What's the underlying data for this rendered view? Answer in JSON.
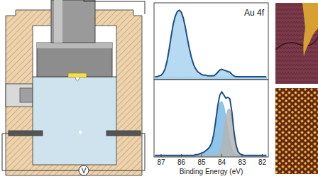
{
  "chart_data": [
    {
      "type": "line",
      "annotation": "Au 4f",
      "xlim": [
        87.35,
        81.7
      ],
      "ylim": [
        0,
        1.05
      ],
      "tick_labels": false,
      "x": [
        87.3,
        87.2,
        87.1,
        87.0,
        86.9,
        86.8,
        86.7,
        86.6,
        86.5,
        86.4,
        86.3,
        86.2,
        86.1,
        86.0,
        85.9,
        85.8,
        85.7,
        85.6,
        85.5,
        85.4,
        85.3,
        85.2,
        85.1,
        85.0,
        84.9,
        84.8,
        84.7,
        84.6,
        84.5,
        84.4,
        84.3,
        84.2,
        84.1,
        84.0,
        83.9,
        83.8,
        83.7,
        83.6,
        83.5,
        83.4,
        83.3,
        83.2,
        83.1,
        83.0,
        82.9,
        82.8,
        82.7,
        82.6,
        82.5,
        82.4,
        82.3,
        82.2,
        82.1,
        82.0,
        81.9,
        81.8
      ],
      "series": [
        {
          "type": "area",
          "color": "#a8d3ef",
          "values": [
            0.04,
            0.04,
            0.05,
            0.06,
            0.09,
            0.15,
            0.26,
            0.42,
            0.6,
            0.76,
            0.87,
            0.93,
            0.95,
            0.92,
            0.84,
            0.71,
            0.56,
            0.42,
            0.3,
            0.21,
            0.15,
            0.11,
            0.09,
            0.07,
            0.06,
            0.06,
            0.05,
            0.05,
            0.05,
            0.04,
            0.04,
            0.04,
            0.04,
            0.04,
            0.04,
            0.04,
            0.04,
            0.04,
            0.04,
            0.04,
            0.04,
            0.04,
            0.04,
            0.04,
            0.04,
            0.04,
            0.04,
            0.04,
            0.04,
            0.04,
            0.04,
            0.04,
            0.04,
            0.04,
            0.04,
            0.04
          ]
        },
        {
          "type": "area",
          "color": "#a8d3ef",
          "values": [
            0.04,
            0.04,
            0.04,
            0.04,
            0.04,
            0.04,
            0.04,
            0.04,
            0.04,
            0.04,
            0.04,
            0.04,
            0.04,
            0.04,
            0.04,
            0.04,
            0.04,
            0.04,
            0.04,
            0.04,
            0.04,
            0.04,
            0.04,
            0.04,
            0.04,
            0.04,
            0.04,
            0.04,
            0.04,
            0.05,
            0.07,
            0.1,
            0.13,
            0.14,
            0.13,
            0.11,
            0.09,
            0.07,
            0.05,
            0.04,
            0.04,
            0.04,
            0.04,
            0.04,
            0.04,
            0.04,
            0.04,
            0.04,
            0.04,
            0.04,
            0.04,
            0.04,
            0.04,
            0.04,
            0.04,
            0.04
          ]
        },
        {
          "type": "line",
          "color": "#1f4f86",
          "values": [
            0.04,
            0.04,
            0.05,
            0.06,
            0.09,
            0.15,
            0.26,
            0.42,
            0.6,
            0.76,
            0.87,
            0.93,
            0.95,
            0.92,
            0.84,
            0.71,
            0.56,
            0.42,
            0.3,
            0.21,
            0.15,
            0.11,
            0.09,
            0.07,
            0.06,
            0.06,
            0.05,
            0.05,
            0.05,
            0.05,
            0.07,
            0.1,
            0.13,
            0.14,
            0.13,
            0.12,
            0.11,
            0.1,
            0.07,
            0.05,
            0.04,
            0.04,
            0.04,
            0.04,
            0.04,
            0.04,
            0.04,
            0.04,
            0.04,
            0.04,
            0.04,
            0.04,
            0.04,
            0.04,
            0.04,
            0.04
          ]
        }
      ]
    },
    {
      "type": "line",
      "x_label": "Binding Energy (eV)",
      "xlim": [
        87.35,
        81.7
      ],
      "ylim": [
        0,
        1
      ],
      "tick_labels": "x",
      "xticks": [
        87,
        86,
        85,
        84,
        83,
        82
      ],
      "x": [
        87.3,
        87.2,
        87.1,
        87.0,
        86.9,
        86.8,
        86.7,
        86.6,
        86.5,
        86.4,
        86.3,
        86.2,
        86.1,
        86.0,
        85.9,
        85.8,
        85.7,
        85.6,
        85.5,
        85.4,
        85.3,
        85.2,
        85.1,
        85.0,
        84.9,
        84.8,
        84.7,
        84.6,
        84.5,
        84.4,
        84.3,
        84.2,
        84.1,
        84.0,
        83.9,
        83.8,
        83.7,
        83.6,
        83.5,
        83.4,
        83.3,
        83.2,
        83.1,
        83.0,
        82.9,
        82.8,
        82.7,
        82.6,
        82.5,
        82.4,
        82.3,
        82.2,
        82.1,
        82.0,
        81.9,
        81.8
      ],
      "series": [
        {
          "type": "area",
          "color": "#7dbbe6",
          "values": [
            0.02,
            0.02,
            0.02,
            0.02,
            0.02,
            0.02,
            0.02,
            0.02,
            0.02,
            0.02,
            0.02,
            0.02,
            0.02,
            0.02,
            0.02,
            0.02,
            0.02,
            0.02,
            0.02,
            0.02,
            0.03,
            0.03,
            0.04,
            0.05,
            0.06,
            0.08,
            0.1,
            0.13,
            0.18,
            0.28,
            0.44,
            0.6,
            0.7,
            0.72,
            0.66,
            0.52,
            0.35,
            0.2,
            0.1,
            0.05,
            0.03,
            0.02,
            0.02,
            0.02,
            0.02,
            0.02,
            0.02,
            0.02,
            0.02,
            0.02,
            0.02,
            0.02,
            0.02,
            0.02,
            0.02,
            0.02
          ]
        },
        {
          "type": "area",
          "color": "#b4b4b4",
          "values": [
            0.02,
            0.02,
            0.02,
            0.02,
            0.02,
            0.02,
            0.02,
            0.02,
            0.02,
            0.02,
            0.02,
            0.02,
            0.02,
            0.02,
            0.02,
            0.02,
            0.02,
            0.02,
            0.02,
            0.02,
            0.02,
            0.02,
            0.02,
            0.02,
            0.02,
            0.02,
            0.02,
            0.02,
            0.02,
            0.02,
            0.02,
            0.04,
            0.08,
            0.16,
            0.32,
            0.5,
            0.61,
            0.62,
            0.49,
            0.29,
            0.14,
            0.06,
            0.03,
            0.02,
            0.02,
            0.02,
            0.02,
            0.02,
            0.02,
            0.02,
            0.02,
            0.02,
            0.02,
            0.02,
            0.02,
            0.02
          ]
        },
        {
          "type": "line",
          "color": "#1f4f86",
          "values": [
            0.02,
            0.02,
            0.02,
            0.02,
            0.02,
            0.02,
            0.02,
            0.02,
            0.02,
            0.02,
            0.02,
            0.02,
            0.02,
            0.02,
            0.02,
            0.02,
            0.02,
            0.02,
            0.02,
            0.02,
            0.03,
            0.03,
            0.04,
            0.05,
            0.06,
            0.08,
            0.1,
            0.13,
            0.18,
            0.29,
            0.47,
            0.66,
            0.8,
            0.84,
            0.8,
            0.76,
            0.77,
            0.75,
            0.58,
            0.33,
            0.16,
            0.07,
            0.04,
            0.03,
            0.02,
            0.02,
            0.02,
            0.02,
            0.02,
            0.02,
            0.02,
            0.02,
            0.02,
            0.02,
            0.02,
            0.02
          ]
        }
      ]
    }
  ],
  "diagram": {
    "voltmeter_label": "V"
  }
}
